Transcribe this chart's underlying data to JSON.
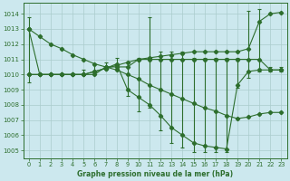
{
  "bg_color": "#cce8ee",
  "grid_color": "#aacccc",
  "line_color": "#2d6e2d",
  "ylim": [
    1004.5,
    1014.7
  ],
  "xlim": [
    -0.5,
    23.5
  ],
  "yticks": [
    1005,
    1006,
    1007,
    1008,
    1009,
    1010,
    1011,
    1012,
    1013,
    1014
  ],
  "xticks": [
    0,
    1,
    2,
    3,
    4,
    5,
    6,
    7,
    8,
    9,
    10,
    11,
    12,
    13,
    14,
    15,
    16,
    17,
    18,
    19,
    20,
    21,
    22,
    23
  ],
  "xlabel": "Graphe pression niveau de la mer (hPa)",
  "hours": [
    0,
    1,
    2,
    3,
    4,
    5,
    6,
    7,
    8,
    9,
    10,
    11,
    12,
    13,
    14,
    15,
    16,
    17,
    18,
    19,
    20,
    21,
    22,
    23
  ],
  "line_A": [
    1013.0,
    1012.5,
    1012.0,
    1011.7,
    1011.3,
    1011.0,
    1010.7,
    1010.5,
    1010.3,
    1010.0,
    1009.7,
    1009.3,
    1009.0,
    1008.7,
    1008.4,
    1008.1,
    1007.8,
    1007.6,
    1007.3,
    1007.1,
    1007.2,
    1007.4,
    1007.5,
    1007.5
  ],
  "line_B": [
    1010.0,
    1010.0,
    1010.0,
    1010.0,
    1010.0,
    1010.0,
    1010.2,
    1010.4,
    1010.6,
    1010.8,
    1011.0,
    1011.1,
    1011.2,
    1011.3,
    1011.4,
    1011.5,
    1011.5,
    1011.5,
    1011.5,
    1011.5,
    1011.7,
    1013.5,
    1014.0,
    1014.1
  ],
  "line_C": [
    1013.0,
    1010.0,
    1010.0,
    1010.0,
    1010.0,
    1010.0,
    1010.2,
    1010.4,
    1010.7,
    1009.0,
    1008.5,
    1008.0,
    1007.3,
    1006.5,
    1006.0,
    1005.5,
    1005.3,
    1005.2,
    1005.1,
    1009.3,
    1010.2,
    1010.3,
    1010.3,
    1010.3
  ],
  "line_D": [
    1010.0,
    1010.0,
    1010.0,
    1010.0,
    1010.0,
    1010.0,
    1010.0,
    1010.5,
    1010.5,
    1010.5,
    1011.0,
    1011.0,
    1011.0,
    1011.0,
    1011.0,
    1011.0,
    1011.0,
    1011.0,
    1011.0,
    1011.0,
    1011.0,
    1011.0,
    1010.3,
    1010.3
  ],
  "bar_top": [
    1013.8,
    1010.0,
    1010.0,
    1010.0,
    1010.0,
    1010.3,
    1010.7,
    1010.8,
    1011.1,
    1010.8,
    1011.1,
    1013.8,
    1011.5,
    1011.5,
    1011.5,
    1011.1,
    1011.1,
    1011.1,
    1011.1,
    1011.1,
    1014.2,
    1014.3,
    1010.5,
    1010.5
  ],
  "bar_bot": [
    1009.5,
    1010.0,
    1010.0,
    1010.0,
    1010.0,
    1010.0,
    1010.0,
    1010.4,
    1010.4,
    1008.6,
    1007.6,
    1007.8,
    1006.3,
    1005.5,
    1005.2,
    1004.9,
    1004.9,
    1004.9,
    1004.9,
    1009.1,
    1009.8,
    1010.2,
    1010.2,
    1010.2
  ]
}
